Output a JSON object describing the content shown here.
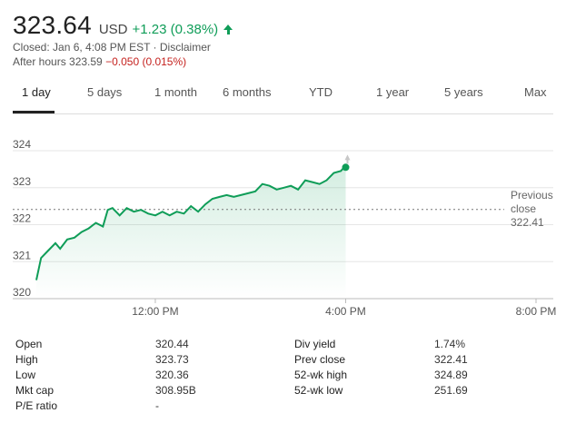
{
  "quote": {
    "price": "323.64",
    "currency": "USD",
    "change": "+1.23 (0.38%)",
    "closed_text": "Closed: Jan 6, 4:08 PM EST",
    "separator": " · ",
    "disclaimer": "Disclaimer",
    "after_hours_label": "After hours 323.59",
    "after_hours_change": "−0.050 (0.015%)",
    "up_color": "#0f9d58",
    "down_color": "#c5221f"
  },
  "tabs": [
    "1 day",
    "5 days",
    "1 month",
    "6 months",
    "YTD",
    "1 year",
    "5 years",
    "Max"
  ],
  "active_tab": "1 day",
  "chart_data": {
    "type": "line",
    "x": [
      9.5,
      9.6,
      9.75,
      9.9,
      10.0,
      10.15,
      10.3,
      10.45,
      10.6,
      10.75,
      10.9,
      11.0,
      11.1,
      11.25,
      11.4,
      11.55,
      11.7,
      11.85,
      12.0,
      12.15,
      12.3,
      12.45,
      12.6,
      12.75,
      12.9,
      13.05,
      13.2,
      13.35,
      13.5,
      13.65,
      13.8,
      13.95,
      14.1,
      14.25,
      14.4,
      14.55,
      14.7,
      14.85,
      15.0,
      15.15,
      15.3,
      15.45,
      15.6,
      15.75,
      15.9,
      16.0
    ],
    "y": [
      320.5,
      321.1,
      321.3,
      321.5,
      321.35,
      321.6,
      321.65,
      321.8,
      321.9,
      322.05,
      321.95,
      322.4,
      322.45,
      322.25,
      322.45,
      322.35,
      322.4,
      322.3,
      322.25,
      322.35,
      322.25,
      322.35,
      322.3,
      322.5,
      322.35,
      322.55,
      322.7,
      322.75,
      322.8,
      322.75,
      322.8,
      322.85,
      322.9,
      323.1,
      323.05,
      322.95,
      323.0,
      323.05,
      322.95,
      323.2,
      323.15,
      323.1,
      323.2,
      323.4,
      323.45,
      323.6
    ],
    "end_point": 323.55,
    "previous_close": 322.41,
    "previous_close_label": [
      "Previous",
      "close",
      "322.41"
    ],
    "x_ticks": [
      "12:00 PM",
      "4:00 PM",
      "8:00 PM"
    ],
    "y_ticks": [
      "324",
      "323",
      "322",
      "321",
      "320"
    ],
    "xlim": [
      9.5,
      20.0
    ],
    "ylim": [
      320,
      324
    ],
    "grid": true,
    "line_color": "#0f9d58"
  },
  "stats": {
    "left": [
      {
        "label": "Open",
        "value": "320.44"
      },
      {
        "label": "High",
        "value": "323.73"
      },
      {
        "label": "Low",
        "value": "320.36"
      },
      {
        "label": "Mkt cap",
        "value": "308.95B"
      },
      {
        "label": "P/E ratio",
        "value": "-"
      }
    ],
    "right": [
      {
        "label": "Div yield",
        "value": "1.74%"
      },
      {
        "label": "Prev close",
        "value": "322.41"
      },
      {
        "label": "52-wk high",
        "value": "324.89"
      },
      {
        "label": "52-wk low",
        "value": "251.69"
      }
    ]
  }
}
